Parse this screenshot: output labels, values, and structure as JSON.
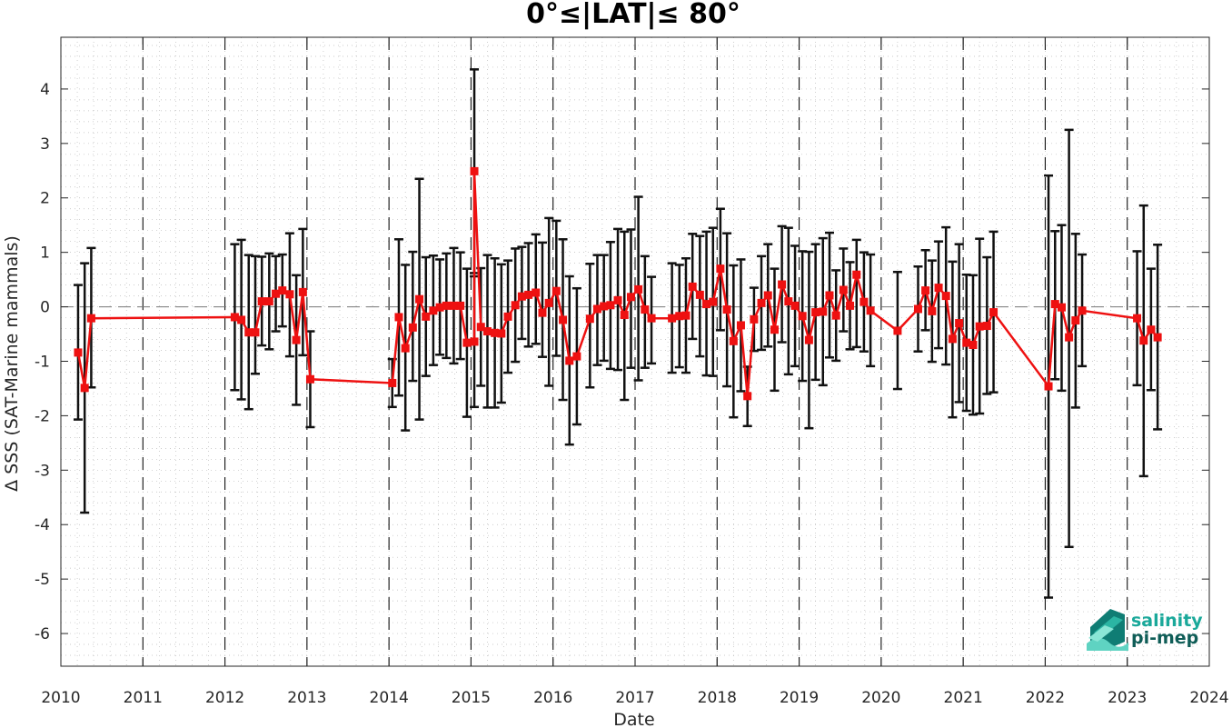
{
  "chart_data": {
    "type": "line",
    "title": "0°≤|LAT|≤ 80°",
    "xlabel": "Date",
    "ylabel": "Δ SSS (SAT-Marine mammals)",
    "xlim": [
      2010,
      2024
    ],
    "ylim": [
      -6.6,
      4.95
    ],
    "x_ticks": [
      "2010",
      "2011",
      "2012",
      "2013",
      "2014",
      "2015",
      "2016",
      "2017",
      "2018",
      "2019",
      "2020",
      "2021",
      "2022",
      "2023",
      "2024"
    ],
    "y_ticks": [
      4,
      3,
      2,
      1,
      0,
      -1,
      -2,
      -3,
      -4,
      -5,
      -6
    ],
    "grid": "minor dotted",
    "year_separators": "dashed vertical",
    "zero_line": "dashed",
    "colors": {
      "series": "#ee1111",
      "error_bars": "#111111",
      "logo": "#1aa89a"
    },
    "series": [
      {
        "marker": "square",
        "points": [
          {
            "x": 2010.21,
            "y": -0.84,
            "lo": -2.07,
            "hi": 0.4
          },
          {
            "x": 2010.29,
            "y": -1.49,
            "lo": -3.78,
            "hi": 0.8
          },
          {
            "x": 2010.37,
            "y": -0.21,
            "lo": -1.48,
            "hi": 1.08
          },
          {
            "x": 2012.12,
            "y": -0.19,
            "lo": -1.53,
            "hi": 1.15
          },
          {
            "x": 2012.2,
            "y": -0.24,
            "lo": -1.7,
            "hi": 1.23
          },
          {
            "x": 2012.29,
            "y": -0.47,
            "lo": -1.88,
            "hi": 0.95
          },
          {
            "x": 2012.37,
            "y": -0.47,
            "lo": -1.23,
            "hi": 0.93
          },
          {
            "x": 2012.45,
            "y": 0.1,
            "lo": -0.71,
            "hi": 0.92
          },
          {
            "x": 2012.54,
            "y": 0.1,
            "lo": -0.78,
            "hi": 0.98
          },
          {
            "x": 2012.62,
            "y": 0.24,
            "lo": -0.45,
            "hi": 0.93
          },
          {
            "x": 2012.7,
            "y": 0.3,
            "lo": -0.36,
            "hi": 0.96
          },
          {
            "x": 2012.79,
            "y": 0.23,
            "lo": -0.91,
            "hi": 1.35
          },
          {
            "x": 2012.87,
            "y": -0.61,
            "lo": -1.8,
            "hi": 0.58
          },
          {
            "x": 2012.95,
            "y": 0.27,
            "lo": -0.89,
            "hi": 1.43
          },
          {
            "x": 2013.04,
            "y": -1.33,
            "lo": -2.21,
            "hi": -0.45
          },
          {
            "x": 2014.04,
            "y": -1.4,
            "lo": -1.84,
            "hi": -0.96
          },
          {
            "x": 2014.12,
            "y": -0.19,
            "lo": -1.63,
            "hi": 1.24
          },
          {
            "x": 2014.2,
            "y": -0.76,
            "lo": -2.27,
            "hi": 0.77
          },
          {
            "x": 2014.29,
            "y": -0.38,
            "lo": -1.36,
            "hi": 1.01
          },
          {
            "x": 2014.37,
            "y": 0.14,
            "lo": -2.07,
            "hi": 2.35
          },
          {
            "x": 2014.45,
            "y": -0.18,
            "lo": -1.27,
            "hi": 0.91
          },
          {
            "x": 2014.54,
            "y": -0.07,
            "lo": -1.07,
            "hi": 0.94
          },
          {
            "x": 2014.62,
            "y": -0.01,
            "lo": -0.88,
            "hi": 0.87
          },
          {
            "x": 2014.7,
            "y": 0.02,
            "lo": -0.94,
            "hi": 0.98
          },
          {
            "x": 2014.79,
            "y": 0.02,
            "lo": -1.04,
            "hi": 1.08
          },
          {
            "x": 2014.87,
            "y": 0.02,
            "lo": -0.96,
            "hi": 1.0
          },
          {
            "x": 2014.95,
            "y": -0.66,
            "lo": -2.02,
            "hi": 0.7
          },
          {
            "x": 2015.04,
            "y": -0.64,
            "lo": -1.84,
            "hi": 0.56
          },
          {
            "x": 2015.04,
            "y": 2.49,
            "lo": 0.62,
            "hi": 4.36
          },
          {
            "x": 2015.12,
            "y": -0.37,
            "lo": -1.45,
            "hi": 0.71
          },
          {
            "x": 2015.2,
            "y": -0.45,
            "lo": -1.85,
            "hi": 0.95
          },
          {
            "x": 2015.29,
            "y": -0.48,
            "lo": -1.85,
            "hi": 0.89
          },
          {
            "x": 2015.37,
            "y": -0.49,
            "lo": -1.76,
            "hi": 0.78
          },
          {
            "x": 2015.45,
            "y": -0.18,
            "lo": -1.21,
            "hi": 0.85
          },
          {
            "x": 2015.54,
            "y": 0.03,
            "lo": -1.01,
            "hi": 1.07
          },
          {
            "x": 2015.62,
            "y": 0.19,
            "lo": -0.59,
            "hi": 1.1
          },
          {
            "x": 2015.7,
            "y": 0.22,
            "lo": -0.73,
            "hi": 1.17
          },
          {
            "x": 2015.79,
            "y": 0.26,
            "lo": -0.68,
            "hi": 1.33
          },
          {
            "x": 2015.87,
            "y": -0.11,
            "lo": -0.92,
            "hi": 1.18
          },
          {
            "x": 2015.95,
            "y": 0.07,
            "lo": -1.45,
            "hi": 1.63
          },
          {
            "x": 2016.04,
            "y": 0.29,
            "lo": -0.9,
            "hi": 1.58
          },
          {
            "x": 2016.12,
            "y": -0.24,
            "lo": -1.71,
            "hi": 1.24
          },
          {
            "x": 2016.2,
            "y": -0.99,
            "lo": -2.53,
            "hi": 0.56
          },
          {
            "x": 2016.29,
            "y": -0.91,
            "lo": -2.16,
            "hi": 0.34
          },
          {
            "x": 2016.45,
            "y": -0.22,
            "lo": -1.48,
            "hi": 0.79
          },
          {
            "x": 2016.54,
            "y": -0.04,
            "lo": -1.07,
            "hi": 0.95
          },
          {
            "x": 2016.62,
            "y": 0.01,
            "lo": -0.99,
            "hi": 0.95
          },
          {
            "x": 2016.7,
            "y": 0.03,
            "lo": -1.14,
            "hi": 1.19
          },
          {
            "x": 2016.79,
            "y": 0.12,
            "lo": -1.16,
            "hi": 1.43
          },
          {
            "x": 2016.87,
            "y": -0.15,
            "lo": -1.71,
            "hi": 1.38
          },
          {
            "x": 2016.95,
            "y": 0.18,
            "lo": -1.12,
            "hi": 1.42
          },
          {
            "x": 2017.04,
            "y": 0.32,
            "lo": -1.35,
            "hi": 2.02
          },
          {
            "x": 2017.12,
            "y": -0.05,
            "lo": -1.12,
            "hi": 0.93
          },
          {
            "x": 2017.2,
            "y": -0.21,
            "lo": -1.04,
            "hi": 0.55
          },
          {
            "x": 2017.45,
            "y": -0.21,
            "lo": -1.21,
            "hi": 0.8
          },
          {
            "x": 2017.54,
            "y": -0.17,
            "lo": -1.11,
            "hi": 0.77
          },
          {
            "x": 2017.62,
            "y": -0.16,
            "lo": -1.21,
            "hi": 0.89
          },
          {
            "x": 2017.7,
            "y": 0.37,
            "lo": -0.59,
            "hi": 1.34
          },
          {
            "x": 2017.79,
            "y": 0.22,
            "lo": -0.91,
            "hi": 1.3
          },
          {
            "x": 2017.87,
            "y": 0.05,
            "lo": -1.26,
            "hi": 1.38
          },
          {
            "x": 2017.95,
            "y": 0.09,
            "lo": -1.27,
            "hi": 1.45
          },
          {
            "x": 2018.04,
            "y": 0.7,
            "lo": -0.43,
            "hi": 1.8
          },
          {
            "x": 2018.12,
            "y": -0.05,
            "lo": -1.46,
            "hi": 1.35
          },
          {
            "x": 2018.2,
            "y": -0.63,
            "lo": -2.03,
            "hi": 0.76
          },
          {
            "x": 2018.29,
            "y": -0.34,
            "lo": -1.55,
            "hi": 0.87
          },
          {
            "x": 2018.37,
            "y": -1.64,
            "lo": -2.19,
            "hi": -1.1
          },
          {
            "x": 2018.45,
            "y": -0.23,
            "lo": -0.81,
            "hi": 0.35
          },
          {
            "x": 2018.54,
            "y": 0.07,
            "lo": -0.79,
            "hi": 0.93
          },
          {
            "x": 2018.62,
            "y": 0.21,
            "lo": -0.73,
            "hi": 1.15
          },
          {
            "x": 2018.7,
            "y": -0.42,
            "lo": -1.54,
            "hi": 0.7
          },
          {
            "x": 2018.79,
            "y": 0.41,
            "lo": -0.65,
            "hi": 1.48
          },
          {
            "x": 2018.87,
            "y": 0.1,
            "lo": -1.24,
            "hi": 1.45
          },
          {
            "x": 2018.95,
            "y": 0.02,
            "lo": -1.09,
            "hi": 1.12
          },
          {
            "x": 2019.04,
            "y": -0.17,
            "lo": -1.36,
            "hi": 1.02
          },
          {
            "x": 2019.12,
            "y": -0.61,
            "lo": -2.23,
            "hi": 1.01
          },
          {
            "x": 2019.2,
            "y": -0.1,
            "lo": -1.34,
            "hi": 1.15
          },
          {
            "x": 2019.29,
            "y": -0.09,
            "lo": -1.44,
            "hi": 1.26
          },
          {
            "x": 2019.37,
            "y": 0.21,
            "lo": -0.93,
            "hi": 1.36
          },
          {
            "x": 2019.45,
            "y": -0.16,
            "lo": -0.99,
            "hi": 0.67
          },
          {
            "x": 2019.54,
            "y": 0.31,
            "lo": -0.45,
            "hi": 1.07
          },
          {
            "x": 2019.62,
            "y": 0.02,
            "lo": -0.78,
            "hi": 0.82
          },
          {
            "x": 2019.7,
            "y": 0.59,
            "lo": -0.74,
            "hi": 1.23
          },
          {
            "x": 2019.79,
            "y": 0.09,
            "lo": -0.82,
            "hi": 1.0
          },
          {
            "x": 2019.87,
            "y": -0.07,
            "lo": -1.09,
            "hi": 0.96
          },
          {
            "x": 2020.2,
            "y": -0.44,
            "lo": -1.51,
            "hi": 0.64
          },
          {
            "x": 2020.45,
            "y": -0.04,
            "lo": -0.82,
            "hi": 0.74
          },
          {
            "x": 2020.54,
            "y": 0.3,
            "lo": -0.43,
            "hi": 1.04
          },
          {
            "x": 2020.62,
            "y": -0.08,
            "lo": -1.01,
            "hi": 0.85
          },
          {
            "x": 2020.7,
            "y": 0.35,
            "lo": -0.76,
            "hi": 1.2
          },
          {
            "x": 2020.79,
            "y": 0.2,
            "lo": -1.06,
            "hi": 1.46
          },
          {
            "x": 2020.87,
            "y": -0.59,
            "lo": -2.03,
            "hi": 0.83
          },
          {
            "x": 2020.95,
            "y": -0.3,
            "lo": -1.75,
            "hi": 1.15
          },
          {
            "x": 2021.04,
            "y": -0.66,
            "lo": -1.91,
            "hi": 0.59
          },
          {
            "x": 2021.12,
            "y": -0.7,
            "lo": -1.98,
            "hi": 0.58
          },
          {
            "x": 2021.2,
            "y": -0.36,
            "lo": -1.96,
            "hi": 1.25
          },
          {
            "x": 2021.29,
            "y": -0.35,
            "lo": -1.6,
            "hi": 0.91
          },
          {
            "x": 2021.37,
            "y": -0.1,
            "lo": -1.57,
            "hi": 1.38
          },
          {
            "x": 2022.04,
            "y": -1.46,
            "lo": -5.34,
            "hi": 2.41
          },
          {
            "x": 2022.12,
            "y": 0.05,
            "lo": -1.33,
            "hi": 1.39
          },
          {
            "x": 2022.2,
            "y": -0.01,
            "lo": -1.54,
            "hi": 1.5
          },
          {
            "x": 2022.29,
            "y": -0.56,
            "lo": -4.41,
            "hi": 3.25
          },
          {
            "x": 2022.37,
            "y": -0.25,
            "lo": -1.85,
            "hi": 1.34
          },
          {
            "x": 2022.45,
            "y": -0.07,
            "lo": -1.09,
            "hi": 0.96
          },
          {
            "x": 2023.12,
            "y": -0.21,
            "lo": -1.44,
            "hi": 1.02
          },
          {
            "x": 2023.2,
            "y": -0.62,
            "lo": -3.11,
            "hi": 1.86
          },
          {
            "x": 2023.29,
            "y": -0.42,
            "lo": -1.53,
            "hi": 0.7
          },
          {
            "x": 2023.37,
            "y": -0.56,
            "lo": -2.25,
            "hi": 1.14
          }
        ]
      }
    ]
  },
  "logo": {
    "line1": "salinity",
    "line2": "pi-mep"
  }
}
